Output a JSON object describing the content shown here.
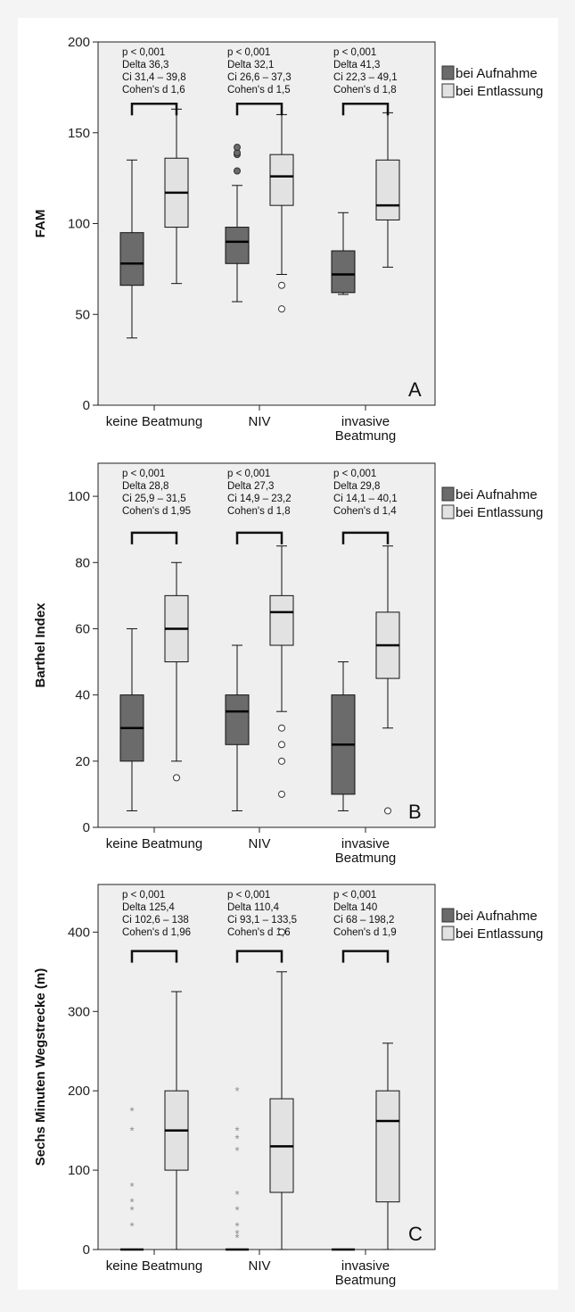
{
  "chart_data": [
    {
      "type": "boxplot",
      "panel_letter": "A",
      "ylabel": "FAM",
      "ylim": [
        0,
        200
      ],
      "yticks": [
        "0",
        "50",
        "100",
        "150",
        "200"
      ],
      "categories": [
        "keine Beatmung",
        "NIV",
        "invasive Beatmung"
      ],
      "category_lines": [
        [
          "keine Beatmung"
        ],
        [
          "NIV"
        ],
        [
          "invasive",
          "Beatmung"
        ]
      ],
      "legend": [
        "bei Aufnahme",
        "bei Entlassung"
      ],
      "annotations": [
        [
          "p < 0,001",
          "Delta 36,3",
          "Ci 31,4 – 39,8",
          "Cohen's d 1,6"
        ],
        [
          "p < 0,001",
          "Delta 32,1",
          "Ci 26,6 – 37,3",
          "Cohen's d 1,5"
        ],
        [
          "p < 0,001",
          "Delta 41,3",
          "Ci 22,3 – 49,1",
          "Cohen's d 1,8"
        ]
      ],
      "bracket_y": 166,
      "series": [
        {
          "name": "bei Aufnahme",
          "boxes": [
            {
              "min": 37,
              "q1": 66,
              "median": 78,
              "q3": 95,
              "max": 135,
              "outliers": [],
              "extremes": []
            },
            {
              "min": 57,
              "q1": 78,
              "median": 90,
              "q3": 98,
              "max": 121,
              "outliers": [
                129,
                138,
                139,
                142
              ],
              "extremes": []
            },
            {
              "min": 61,
              "q1": 62,
              "median": 72,
              "q3": 85,
              "max": 106,
              "outliers": [],
              "extremes": []
            }
          ]
        },
        {
          "name": "bei Entlassung",
          "boxes": [
            {
              "min": 67,
              "q1": 98,
              "median": 117,
              "q3": 136,
              "max": 163,
              "outliers": [],
              "extremes": []
            },
            {
              "min": 72,
              "q1": 110,
              "median": 126,
              "q3": 138,
              "max": 160,
              "outliers": [
                66,
                53
              ],
              "extremes": []
            },
            {
              "min": 76,
              "q1": 102,
              "median": 110,
              "q3": 135,
              "max": 161,
              "outliers": [],
              "extremes": []
            }
          ]
        }
      ]
    },
    {
      "type": "boxplot",
      "panel_letter": "B",
      "ylabel": "Barthel Index",
      "ylim": [
        0,
        110
      ],
      "yticks": [
        "0",
        "20",
        "40",
        "60",
        "80",
        "100"
      ],
      "categories": [
        "keine Beatmung",
        "NIV",
        "invasive Beatmung"
      ],
      "category_lines": [
        [
          "keine Beatmung"
        ],
        [
          "NIV"
        ],
        [
          "invasive",
          "Beatmung"
        ]
      ],
      "legend": [
        "bei Aufnahme",
        "bei Entlassung"
      ],
      "annotations": [
        [
          "p < 0,001",
          "Delta 28,8",
          "Ci 25,9 – 31,5",
          "Cohen's d 1,95"
        ],
        [
          "p < 0,001",
          "Delta 27,3",
          "Ci 14,9 – 23,2",
          "Cohen's d 1,8"
        ],
        [
          "p < 0,001",
          "Delta 29,8",
          "Ci 14,1 – 40,1",
          "Cohen's d 1,4"
        ]
      ],
      "bracket_y": 89,
      "series": [
        {
          "name": "bei Aufnahme",
          "boxes": [
            {
              "min": 5,
              "q1": 20,
              "median": 30,
              "q3": 40,
              "max": 60,
              "outliers": [],
              "extremes": []
            },
            {
              "min": 5,
              "q1": 25,
              "median": 35,
              "q3": 40,
              "max": 55,
              "outliers": [],
              "extremes": []
            },
            {
              "min": 5,
              "q1": 10,
              "median": 25,
              "q3": 40,
              "max": 50,
              "outliers": [],
              "extremes": []
            }
          ]
        },
        {
          "name": "bei Entlassung",
          "boxes": [
            {
              "min": 20,
              "q1": 50,
              "median": 60,
              "q3": 70,
              "max": 80,
              "outliers": [
                15
              ],
              "extremes": []
            },
            {
              "min": 35,
              "q1": 55,
              "median": 65,
              "q3": 70,
              "max": 85,
              "outliers": [
                30,
                25,
                20,
                10
              ],
              "extremes": []
            },
            {
              "min": 30,
              "q1": 45,
              "median": 55,
              "q3": 65,
              "max": 85,
              "outliers": [
                5
              ],
              "extremes": []
            }
          ]
        }
      ]
    },
    {
      "type": "boxplot",
      "panel_letter": "C",
      "ylabel": "Sechs Minuten Wegstrecke (m)",
      "ylim": [
        0,
        460
      ],
      "yticks": [
        "0",
        "100",
        "200",
        "300",
        "400"
      ],
      "categories": [
        "keine Beatmung",
        "NIV",
        "invasive Beatmung"
      ],
      "category_lines": [
        [
          "keine Beatmung"
        ],
        [
          "NIV"
        ],
        [
          "invasive",
          "Beatmung"
        ]
      ],
      "legend": [
        "bei Aufnahme",
        "bei Entlassung"
      ],
      "annotations": [
        [
          "p < 0,001",
          "Delta 125,4",
          "Ci 102,6 – 138",
          "Cohen's d 1,96"
        ],
        [
          "p < 0,001",
          "Delta 110,4",
          "Ci 93,1 – 133,5",
          "Cohen's d 1,6"
        ],
        [
          "p < 0,001",
          "Delta 140",
          "Ci 68 – 198,2",
          "Cohen's d 1,9"
        ]
      ],
      "bracket_y": 376,
      "series": [
        {
          "name": "bei Aufnahme",
          "boxes": [
            {
              "min": 0,
              "q1": 0,
              "median": 0,
              "q3": 0,
              "max": 0,
              "outliers": [],
              "extremes": [
                175,
                150,
                80,
                60,
                50,
                30
              ]
            },
            {
              "min": 0,
              "q1": 0,
              "median": 0,
              "q3": 0,
              "max": 0,
              "outliers": [],
              "extremes": [
                200,
                150,
                140,
                125,
                70,
                50,
                30,
                20,
                15
              ]
            },
            {
              "min": 0,
              "q1": 0,
              "median": 0,
              "q3": 0,
              "max": 0,
              "outliers": [],
              "extremes": []
            }
          ]
        },
        {
          "name": "bei Entlassung",
          "boxes": [
            {
              "min": 0,
              "q1": 100,
              "median": 150,
              "q3": 200,
              "max": 325,
              "outliers": [],
              "extremes": []
            },
            {
              "min": 0,
              "q1": 72,
              "median": 130,
              "q3": 190,
              "max": 350,
              "outliers": [
                400
              ],
              "extremes": []
            },
            {
              "min": 0,
              "q1": 60,
              "median": 162,
              "q3": 200,
              "max": 260,
              "outliers": [],
              "extremes": []
            }
          ]
        }
      ]
    }
  ],
  "colors": {
    "plot_background": "#efefef",
    "aufnahme_fill": "#6b6b6b",
    "entlassung_fill": "#e2e2e2",
    "frame": "#222222",
    "extreme_marker": "#8a8a8a"
  }
}
